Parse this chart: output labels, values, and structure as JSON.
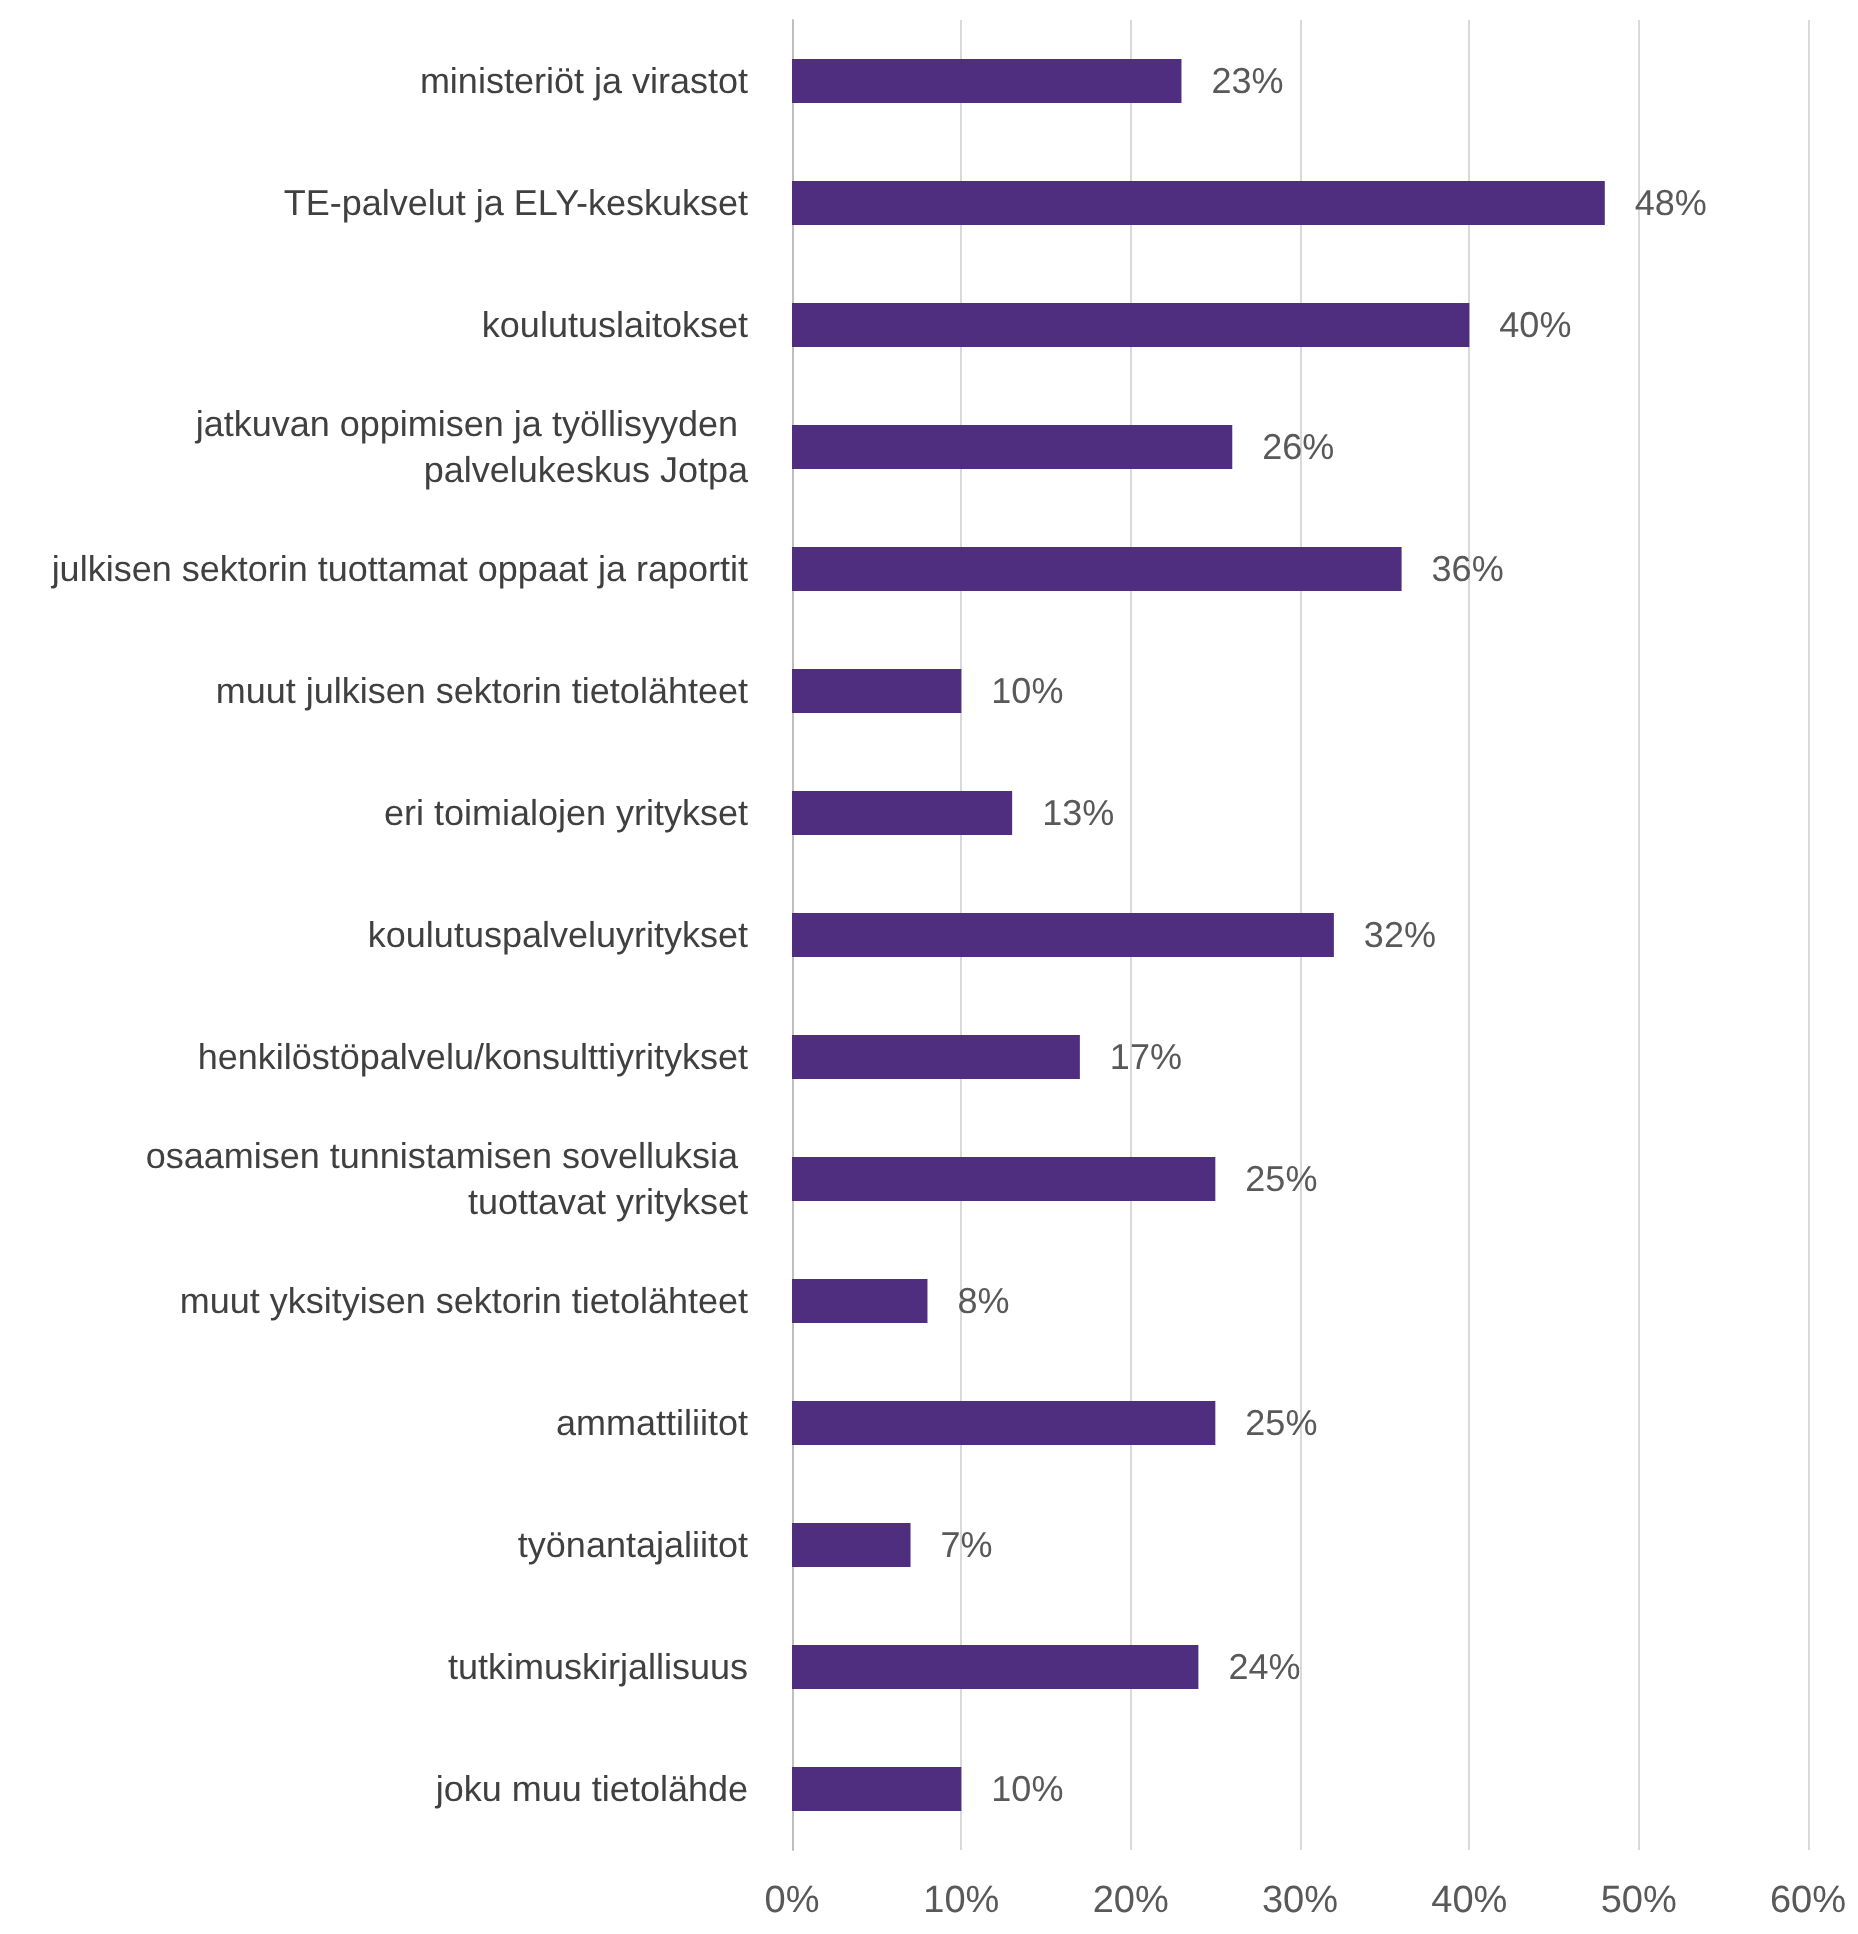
{
  "chart_data": {
    "type": "bar",
    "orientation": "horizontal",
    "categories": [
      "ministeriöt ja virastot",
      "TE-palvelut ja ELY-keskukset",
      "koulutuslaitokset",
      "jatkuvan oppimisen ja työllisyyden palvelukeskus Jotpa",
      "julkisen sektorin tuottamat oppaat ja raportit",
      "muut julkisen sektorin tietolähteet",
      "eri toimialojen yritykset",
      "koulutuspalveluyritykset",
      "henkilöstöpalvelu/konsulttiyritykset",
      "osaamisen tunnistamisen sovelluksia tuottavat yritykset",
      "muut yksityisen sektorin tietolähteet",
      "ammattiliitot",
      "työnantajaliitot",
      "tutkimuskirjallisuus",
      "joku muu tietolähde"
    ],
    "values": [
      23,
      48,
      40,
      26,
      36,
      10,
      13,
      32,
      17,
      25,
      8,
      25,
      7,
      24,
      10
    ],
    "value_labels": [
      "23%",
      "48%",
      "40%",
      "26%",
      "36%",
      "10%",
      "13%",
      "32%",
      "17%",
      "25%",
      "8%",
      "25%",
      "7%",
      "24%",
      "10%"
    ],
    "color": "#4f2d7f",
    "xlim": [
      0,
      60
    ],
    "xticks": [
      {
        "value": 0,
        "label": "0%"
      },
      {
        "value": 10,
        "label": "10%"
      },
      {
        "value": 20,
        "label": "20%"
      },
      {
        "value": 30,
        "label": "30%"
      },
      {
        "value": 40,
        "label": "40%"
      },
      {
        "value": 50,
        "label": "50%"
      },
      {
        "value": 60,
        "label": "60%"
      }
    ],
    "grid": "x"
  }
}
